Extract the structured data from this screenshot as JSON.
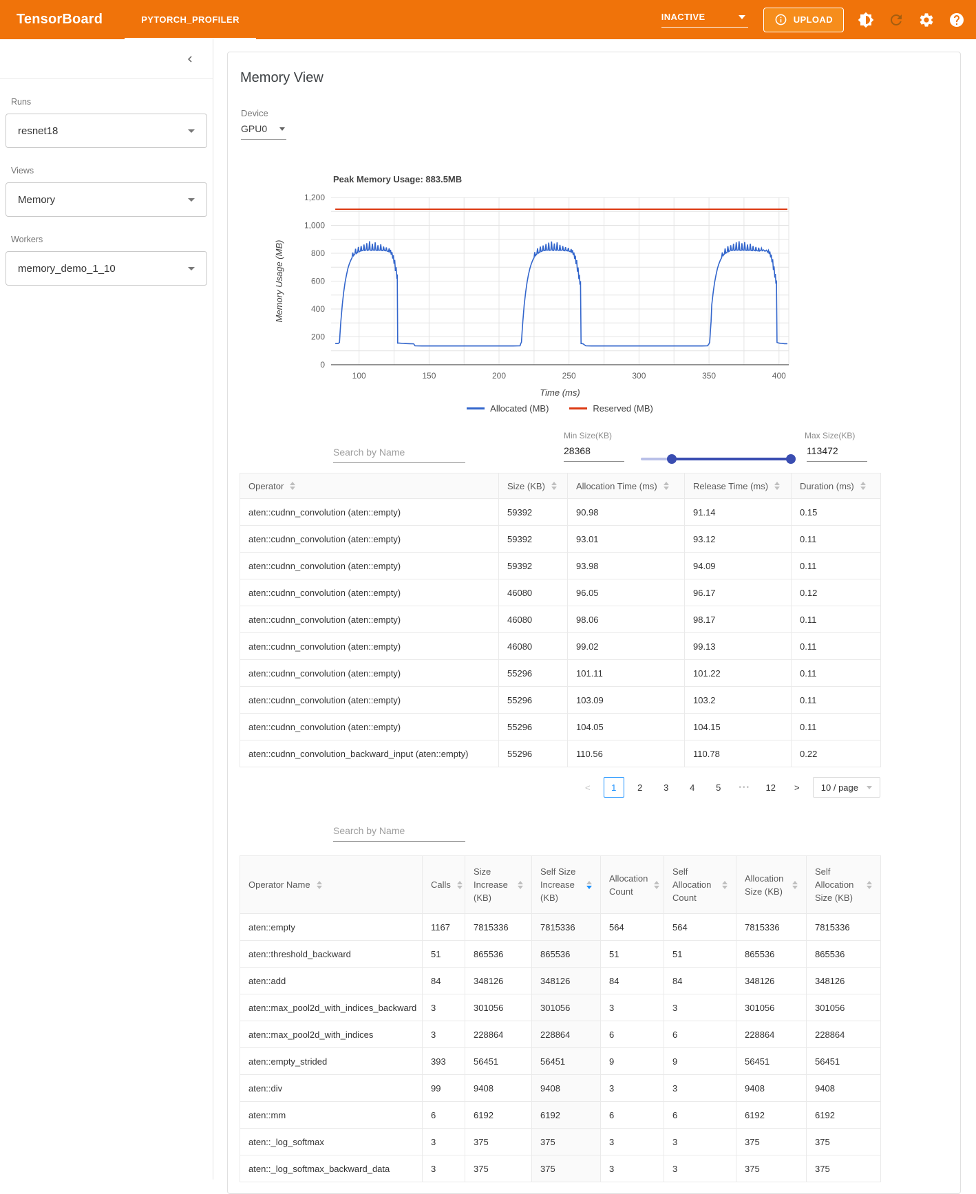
{
  "colors": {
    "header_orange": "#f0730a",
    "accent_blue": "#1890ff",
    "slider_indigo": "#3a4db1",
    "allocated_blue": "#3366cc",
    "reserved_red": "#dc3912"
  },
  "header": {
    "brand": "TensorBoard",
    "tab": "PYTORCH_PROFILER",
    "status_select": "INACTIVE",
    "upload_label": "UPLOAD"
  },
  "sidebar": {
    "runs_label": "Runs",
    "runs_value": "resnet18",
    "views_label": "Views",
    "views_value": "Memory",
    "workers_label": "Workers",
    "workers_value": "memory_demo_1_10"
  },
  "main": {
    "title": "Memory View",
    "device_label": "Device",
    "device_value": "GPU0"
  },
  "chart_data": {
    "type": "line",
    "title": "Peak Memory Usage: 883.5MB",
    "xlabel": "Time (ms)",
    "ylabel": "Memory Usage (MB)",
    "xlim": [
      80,
      407
    ],
    "ylim": [
      0,
      1200
    ],
    "x_ticks": [
      100,
      150,
      200,
      250,
      300,
      350,
      400
    ],
    "y_ticks": [
      0,
      200,
      400,
      600,
      800,
      1000,
      1200
    ],
    "grid": true,
    "legend_position": "bottom",
    "legend": [
      "Allocated (MB)",
      "Reserved (MB)"
    ],
    "series": [
      {
        "name": "Allocated (MB)",
        "color": "#3366cc",
        "width": 1.6,
        "points": [
          [
            83,
            152
          ],
          [
            85,
            152
          ],
          [
            86,
            160
          ],
          [
            86.5,
            240
          ],
          [
            87,
            310
          ],
          [
            88,
            430
          ],
          [
            89,
            520
          ],
          [
            90,
            590
          ],
          [
            91,
            645
          ],
          [
            92,
            690
          ],
          [
            93,
            722
          ],
          [
            94,
            748
          ],
          [
            95,
            768
          ],
          [
            95.5,
            805
          ],
          [
            96,
            782
          ],
          [
            97,
            795
          ],
          [
            97.5,
            832
          ],
          [
            98,
            798
          ],
          [
            99,
            806
          ],
          [
            99.5,
            845
          ],
          [
            100,
            810
          ],
          [
            101,
            816
          ],
          [
            101.5,
            852
          ],
          [
            102,
            818
          ],
          [
            103,
            820
          ],
          [
            103.5,
            862
          ],
          [
            104,
            820
          ],
          [
            105,
            823
          ],
          [
            105.5,
            872
          ],
          [
            106,
            820
          ],
          [
            107,
            824
          ],
          [
            107.5,
            886
          ],
          [
            108,
            822
          ],
          [
            109,
            820
          ],
          [
            109.5,
            868
          ],
          [
            110,
            823
          ],
          [
            111,
            821
          ],
          [
            111.5,
            878
          ],
          [
            112,
            822
          ],
          [
            113,
            820
          ],
          [
            113.5,
            858
          ],
          [
            114,
            821
          ],
          [
            115,
            822
          ],
          [
            115.5,
            864
          ],
          [
            116,
            820
          ],
          [
            117,
            819
          ],
          [
            117.5,
            848
          ],
          [
            118,
            820
          ],
          [
            119,
            818
          ],
          [
            119.5,
            842
          ],
          [
            120,
            816
          ],
          [
            121,
            812
          ],
          [
            121.5,
            835
          ],
          [
            122,
            805
          ],
          [
            122.5,
            824
          ],
          [
            123,
            790
          ],
          [
            123.5,
            808
          ],
          [
            124,
            762
          ],
          [
            124.5,
            785
          ],
          [
            125,
            725
          ],
          [
            125.5,
            752
          ],
          [
            126,
            672
          ],
          [
            126.5,
            700
          ],
          [
            127,
            618
          ],
          [
            127.3,
            648
          ],
          [
            127.6,
            155
          ],
          [
            129,
            155
          ],
          [
            131,
            153
          ],
          [
            133,
            152
          ],
          [
            136,
            151
          ],
          [
            139,
            150
          ],
          [
            140,
            136
          ],
          [
            145,
            135
          ],
          [
            152,
            135
          ],
          [
            160,
            135
          ],
          [
            170,
            135
          ],
          [
            180,
            135
          ],
          [
            190,
            135
          ],
          [
            200,
            135
          ],
          [
            210,
            135
          ],
          [
            215,
            136
          ],
          [
            215.5,
            152
          ],
          [
            216,
            162
          ],
          [
            216.5,
            240
          ],
          [
            217,
            310
          ],
          [
            218,
            430
          ],
          [
            219,
            520
          ],
          [
            220,
            590
          ],
          [
            221,
            645
          ],
          [
            222,
            690
          ],
          [
            223,
            722
          ],
          [
            224,
            748
          ],
          [
            225,
            768
          ],
          [
            225.5,
            808
          ],
          [
            226,
            782
          ],
          [
            227,
            795
          ],
          [
            227.5,
            835
          ],
          [
            228,
            800
          ],
          [
            229,
            808
          ],
          [
            229.5,
            848
          ],
          [
            230,
            812
          ],
          [
            231,
            817
          ],
          [
            231.5,
            856
          ],
          [
            232,
            819
          ],
          [
            233,
            820
          ],
          [
            233.5,
            866
          ],
          [
            234,
            821
          ],
          [
            235,
            823
          ],
          [
            235.5,
            876
          ],
          [
            236,
            820
          ],
          [
            237,
            823
          ],
          [
            237.5,
            884
          ],
          [
            238,
            822
          ],
          [
            239,
            820
          ],
          [
            239.5,
            870
          ],
          [
            240,
            823
          ],
          [
            241,
            821
          ],
          [
            241.5,
            878
          ],
          [
            242,
            822
          ],
          [
            243,
            820
          ],
          [
            243.5,
            860
          ],
          [
            244,
            821
          ],
          [
            245,
            822
          ],
          [
            245.5,
            852
          ],
          [
            246,
            820
          ],
          [
            247,
            818
          ],
          [
            247.5,
            844
          ],
          [
            248,
            819
          ],
          [
            249,
            817
          ],
          [
            249.5,
            838
          ],
          [
            250,
            815
          ],
          [
            251,
            811
          ],
          [
            251.5,
            830
          ],
          [
            252,
            804
          ],
          [
            252.5,
            822
          ],
          [
            253,
            788
          ],
          [
            253.5,
            806
          ],
          [
            254,
            760
          ],
          [
            254.5,
            782
          ],
          [
            255,
            722
          ],
          [
            255.5,
            750
          ],
          [
            256,
            668
          ],
          [
            256.5,
            698
          ],
          [
            257,
            615
          ],
          [
            257.4,
            645
          ],
          [
            257.8,
            575
          ],
          [
            258.2,
            600
          ],
          [
            258.6,
            152
          ],
          [
            260,
            150
          ],
          [
            262,
            136
          ],
          [
            266,
            135
          ],
          [
            275,
            135
          ],
          [
            285,
            135
          ],
          [
            295,
            135
          ],
          [
            305,
            135
          ],
          [
            315,
            135
          ],
          [
            325,
            135
          ],
          [
            335,
            135
          ],
          [
            345,
            135
          ],
          [
            349,
            136
          ],
          [
            350,
            150
          ],
          [
            350.5,
            162
          ],
          [
            351,
            240
          ],
          [
            351.5,
            310
          ],
          [
            352,
            430
          ],
          [
            353,
            520
          ],
          [
            354,
            590
          ],
          [
            355,
            645
          ],
          [
            356,
            690
          ],
          [
            357,
            722
          ],
          [
            358,
            748
          ],
          [
            359,
            768
          ],
          [
            359.5,
            806
          ],
          [
            360,
            782
          ],
          [
            361,
            795
          ],
          [
            361.5,
            834
          ],
          [
            362,
            800
          ],
          [
            363,
            808
          ],
          [
            363.5,
            850
          ],
          [
            364,
            812
          ],
          [
            365,
            818
          ],
          [
            365.5,
            858
          ],
          [
            366,
            820
          ],
          [
            367,
            821
          ],
          [
            367.5,
            868
          ],
          [
            368,
            820
          ],
          [
            369,
            823
          ],
          [
            369.5,
            878
          ],
          [
            370,
            821
          ],
          [
            371,
            823
          ],
          [
            371.5,
            886
          ],
          [
            372,
            822
          ],
          [
            373,
            820
          ],
          [
            373.5,
            872
          ],
          [
            374,
            823
          ],
          [
            375,
            821
          ],
          [
            375.5,
            880
          ],
          [
            376,
            822
          ],
          [
            377,
            820
          ],
          [
            377.5,
            862
          ],
          [
            378,
            821
          ],
          [
            379,
            822
          ],
          [
            379.5,
            868
          ],
          [
            380,
            820
          ],
          [
            381,
            819
          ],
          [
            381.5,
            852
          ],
          [
            382,
            820
          ],
          [
            383,
            818
          ],
          [
            383.5,
            845
          ],
          [
            384,
            819
          ],
          [
            385,
            817
          ],
          [
            385.5,
            840
          ],
          [
            386,
            816
          ],
          [
            387,
            820
          ],
          [
            387.5,
            836
          ],
          [
            388,
            818
          ],
          [
            389,
            824
          ],
          [
            390,
            814
          ],
          [
            391,
            822
          ],
          [
            392,
            808
          ],
          [
            392.5,
            820
          ],
          [
            393,
            795
          ],
          [
            393.5,
            812
          ],
          [
            394,
            770
          ],
          [
            394.5,
            790
          ],
          [
            395,
            735
          ],
          [
            395.5,
            758
          ],
          [
            396,
            680
          ],
          [
            396.5,
            705
          ],
          [
            397,
            625
          ],
          [
            397.4,
            652
          ],
          [
            397.8,
            582
          ],
          [
            398.2,
            605
          ],
          [
            398.6,
            160
          ],
          [
            400,
            155
          ],
          [
            402,
            153
          ],
          [
            404,
            151
          ],
          [
            406,
            151
          ]
        ]
      },
      {
        "name": "Reserved (MB)",
        "color": "#dc3912",
        "width": 2,
        "points": [
          [
            83,
            1116
          ],
          [
            406,
            1116
          ]
        ]
      }
    ]
  },
  "filters": {
    "search_placeholder": "Search by Name",
    "min_label": "Min Size(KB)",
    "min_value": "28368",
    "max_label": "Max Size(KB)",
    "max_value": "113472",
    "slider_min_pct": 20.5,
    "slider_max_pct": 99
  },
  "table1": {
    "columns": [
      "Operator",
      "Size (KB)",
      "Allocation Time (ms)",
      "Release Time (ms)",
      "Duration (ms)"
    ],
    "rows": [
      [
        "aten::cudnn_convolution (aten::empty)",
        "59392",
        "90.98",
        "91.14",
        "0.15"
      ],
      [
        "aten::cudnn_convolution (aten::empty)",
        "59392",
        "93.01",
        "93.12",
        "0.11"
      ],
      [
        "aten::cudnn_convolution (aten::empty)",
        "59392",
        "93.98",
        "94.09",
        "0.11"
      ],
      [
        "aten::cudnn_convolution (aten::empty)",
        "46080",
        "96.05",
        "96.17",
        "0.12"
      ],
      [
        "aten::cudnn_convolution (aten::empty)",
        "46080",
        "98.06",
        "98.17",
        "0.11"
      ],
      [
        "aten::cudnn_convolution (aten::empty)",
        "46080",
        "99.02",
        "99.13",
        "0.11"
      ],
      [
        "aten::cudnn_convolution (aten::empty)",
        "55296",
        "101.11",
        "101.22",
        "0.11"
      ],
      [
        "aten::cudnn_convolution (aten::empty)",
        "55296",
        "103.09",
        "103.2",
        "0.11"
      ],
      [
        "aten::cudnn_convolution (aten::empty)",
        "55296",
        "104.05",
        "104.15",
        "0.11"
      ],
      [
        "aten::cudnn_convolution_backward_input (aten::empty)",
        "55296",
        "110.56",
        "110.78",
        "0.22"
      ]
    ]
  },
  "pagination": {
    "prev": "<",
    "pages": [
      "1",
      "2",
      "3",
      "4",
      "5",
      "•••",
      "12"
    ],
    "active": "1",
    "next": ">",
    "page_size": "10 / page"
  },
  "table2": {
    "search_placeholder": "Search by Name",
    "columns": [
      "Operator Name",
      "Calls",
      "Size Increase (KB)",
      "Self Size Increase (KB)",
      "Allocation Count",
      "Self Allocation Count",
      "Allocation Size (KB)",
      "Self Allocation Size (KB)"
    ],
    "sorted_column": "Self Size Increase (KB)",
    "sorted_column_index": 3,
    "sort_direction": "descend",
    "rows": [
      [
        "aten::empty",
        "1167",
        "7815336",
        "7815336",
        "564",
        "564",
        "7815336",
        "7815336"
      ],
      [
        "aten::threshold_backward",
        "51",
        "865536",
        "865536",
        "51",
        "51",
        "865536",
        "865536"
      ],
      [
        "aten::add",
        "84",
        "348126",
        "348126",
        "84",
        "84",
        "348126",
        "348126"
      ],
      [
        "aten::max_pool2d_with_indices_backward",
        "3",
        "301056",
        "301056",
        "3",
        "3",
        "301056",
        "301056"
      ],
      [
        "aten::max_pool2d_with_indices",
        "3",
        "228864",
        "228864",
        "6",
        "6",
        "228864",
        "228864"
      ],
      [
        "aten::empty_strided",
        "393",
        "56451",
        "56451",
        "9",
        "9",
        "56451",
        "56451"
      ],
      [
        "aten::div",
        "99",
        "9408",
        "9408",
        "3",
        "3",
        "9408",
        "9408"
      ],
      [
        "aten::mm",
        "6",
        "6192",
        "6192",
        "6",
        "6",
        "6192",
        "6192"
      ],
      [
        "aten::_log_softmax",
        "3",
        "375",
        "375",
        "3",
        "3",
        "375",
        "375"
      ],
      [
        "aten::_log_softmax_backward_data",
        "3",
        "375",
        "375",
        "3",
        "3",
        "375",
        "375"
      ]
    ]
  }
}
